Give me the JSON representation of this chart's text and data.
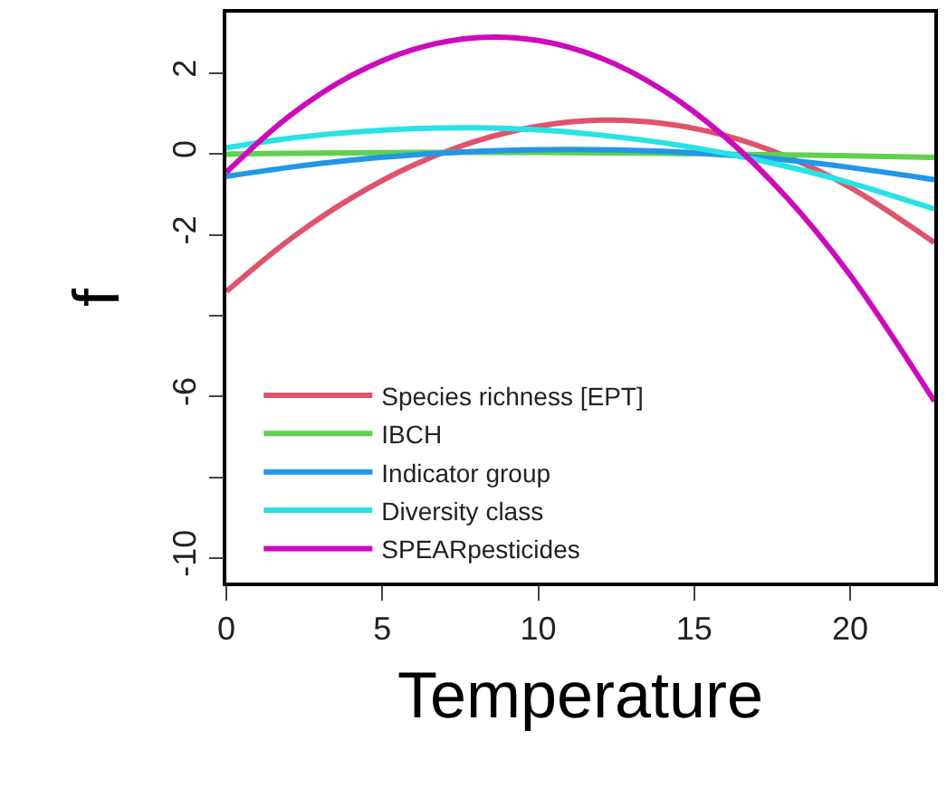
{
  "chart_data": {
    "type": "line",
    "xlabel": "Temperature",
    "ylabel": "f",
    "x": [
      0,
      2,
      4,
      6,
      8,
      10,
      12,
      14,
      16,
      18,
      20,
      22.7
    ],
    "series": [
      {
        "name": "Species richness [EPT]",
        "color": "#df536b",
        "values": [
          -3.4,
          -2.13,
          -1.09,
          -0.27,
          0.32,
          0.69,
          0.84,
          0.76,
          0.46,
          -0.07,
          -0.82,
          -2.19
        ]
      },
      {
        "name": "IBCH",
        "color": "#61d04f",
        "values": [
          0.0,
          0.02,
          0.03,
          0.04,
          0.04,
          0.04,
          0.03,
          0.02,
          0.0,
          -0.02,
          -0.04,
          -0.08
        ]
      },
      {
        "name": "Indicator group",
        "color": "#2297e6",
        "values": [
          -0.55,
          -0.33,
          -0.15,
          -0.02,
          0.07,
          0.11,
          0.11,
          0.07,
          -0.02,
          -0.15,
          -0.33,
          -0.63
        ]
      },
      {
        "name": "Diversity class",
        "color": "#28e2e5",
        "values": [
          0.16,
          0.39,
          0.54,
          0.63,
          0.65,
          0.6,
          0.47,
          0.28,
          0.02,
          -0.31,
          -0.71,
          -1.36
        ]
      },
      {
        "name": "SPEARpesticides",
        "color": "#cd0bbc",
        "values": [
          -0.45,
          0.93,
          1.94,
          2.59,
          2.88,
          2.81,
          2.38,
          1.58,
          0.42,
          -1.1,
          -2.99,
          -6.11
        ]
      }
    ],
    "xlim": [
      0,
      22.7
    ],
    "ylim": [
      -10.6,
      3.5
    ],
    "xticks": [
      0,
      5,
      10,
      15,
      20
    ],
    "yticks": [
      2,
      0,
      -2,
      {
        "value": -4,
        "label": null
      },
      -6,
      {
        "value": -8,
        "label": null
      },
      -10
    ],
    "legend": "bottom left",
    "marker": "none",
    "line_style": "solid"
  }
}
